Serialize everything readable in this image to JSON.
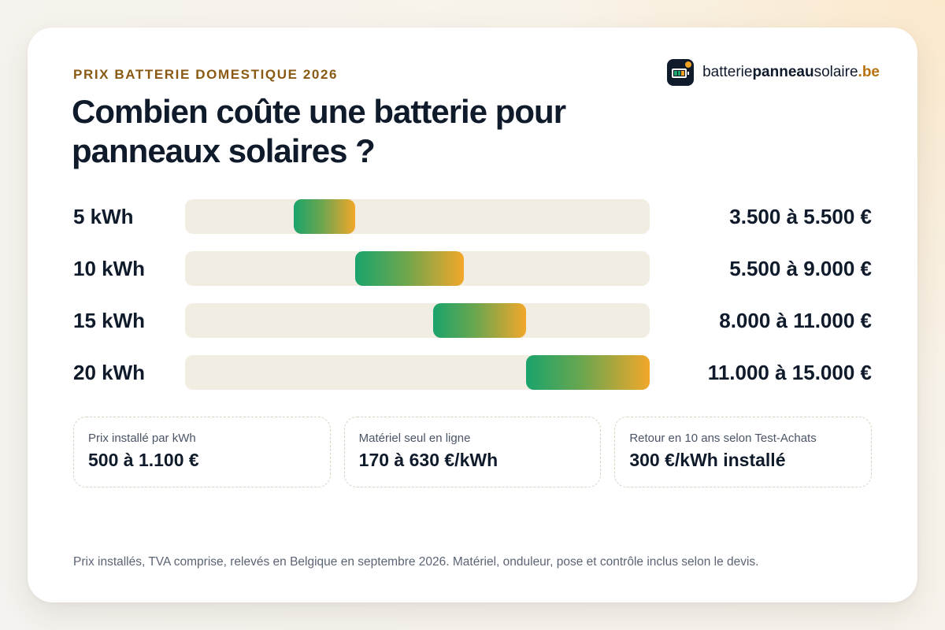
{
  "eyebrow": "PRIX BATTERIE DOMESTIQUE 2026",
  "title": "Combien coûte une batterie pour panneaux solaires ?",
  "brand": {
    "part1": "batterie",
    "part2": "panneau",
    "part3": "solaire",
    "part4": ".be",
    "icon": "battery-icon"
  },
  "colors": {
    "accent_green": "#1aa46b",
    "accent_orange": "#f2a72a",
    "brand_orange": "#b8720f",
    "ink": "#0f1a2b",
    "track": "#f2ede2"
  },
  "chart_data": {
    "type": "bar",
    "orientation": "horizontal-range",
    "unit": "€",
    "categories": [
      "5 kWh",
      "10 kWh",
      "15 kWh",
      "20 kWh"
    ],
    "ranges": [
      [
        3500,
        5500
      ],
      [
        5500,
        9000
      ],
      [
        8000,
        11000
      ],
      [
        11000,
        15000
      ]
    ],
    "value_labels": [
      "3.500 à 5.500 €",
      "5.500 à 9.000 €",
      "8.000 à 11.000 €",
      "11.000 à 15.000 €"
    ],
    "xlim": [
      0,
      15000
    ]
  },
  "stats": [
    {
      "label": "Prix installé par kWh",
      "value": "500 à 1.100 €"
    },
    {
      "label": "Matériel seul en ligne",
      "value": "170 à 630 €/kWh"
    },
    {
      "label": "Retour en 10 ans selon Test-Achats",
      "value": "300 €/kWh installé"
    }
  ],
  "footnote": "Prix installés, TVA comprise, relevés en Belgique en septembre 2026. Matériel, onduleur, pose et contrôle inclus selon le devis."
}
